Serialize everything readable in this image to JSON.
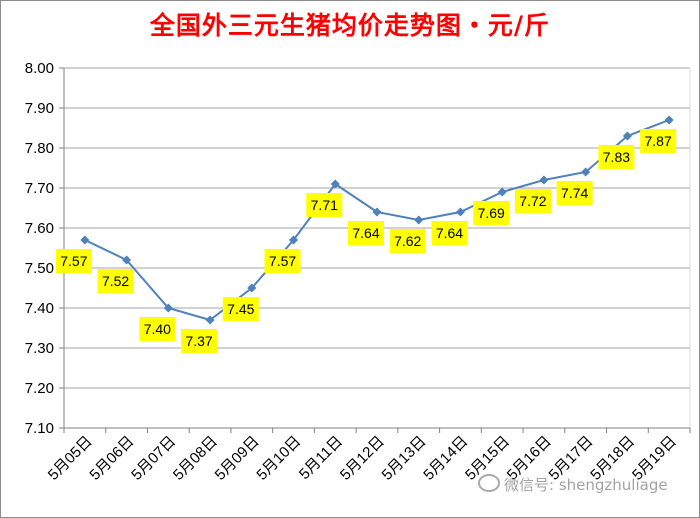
{
  "chart_data": {
    "type": "line",
    "title": "全国外三元生猪均价走势图・元/斤",
    "xlabel": "",
    "ylabel": "",
    "categories": [
      "5月05日",
      "5月06日",
      "5月07日",
      "5月08日",
      "5月09日",
      "5月10日",
      "5月11日",
      "5月12日",
      "5月13日",
      "5月14日",
      "5月15日",
      "5月16日",
      "5月17日",
      "5月18日",
      "5月19日"
    ],
    "series": [
      {
        "values": [
          7.57,
          7.52,
          7.4,
          7.37,
          7.45,
          7.57,
          7.71,
          7.64,
          7.62,
          7.64,
          7.69,
          7.72,
          7.74,
          7.83,
          7.87
        ]
      }
    ],
    "data_labels": [
      "7.57",
      "7.52",
      "7.40",
      "7.37",
      "7.45",
      "7.57",
      "7.71",
      "7.64",
      "7.62",
      "7.64",
      "7.69",
      "7.72",
      "7.74",
      "7.83",
      "7.87"
    ],
    "ylim": [
      7.1,
      8.0
    ],
    "yticks": [
      "7.10",
      "7.20",
      "7.30",
      "7.40",
      "7.50",
      "7.60",
      "7.70",
      "7.80",
      "7.90",
      "8.00"
    ],
    "grid": true,
    "legend": "none",
    "colors": {
      "title": "#ff0000",
      "line": "#4f81bd",
      "label_background": "#ffff00",
      "grid": "#a6a6a6"
    }
  },
  "watermark": {
    "text": "微信号: shengzhuliage",
    "icon": "wechat-icon"
  }
}
